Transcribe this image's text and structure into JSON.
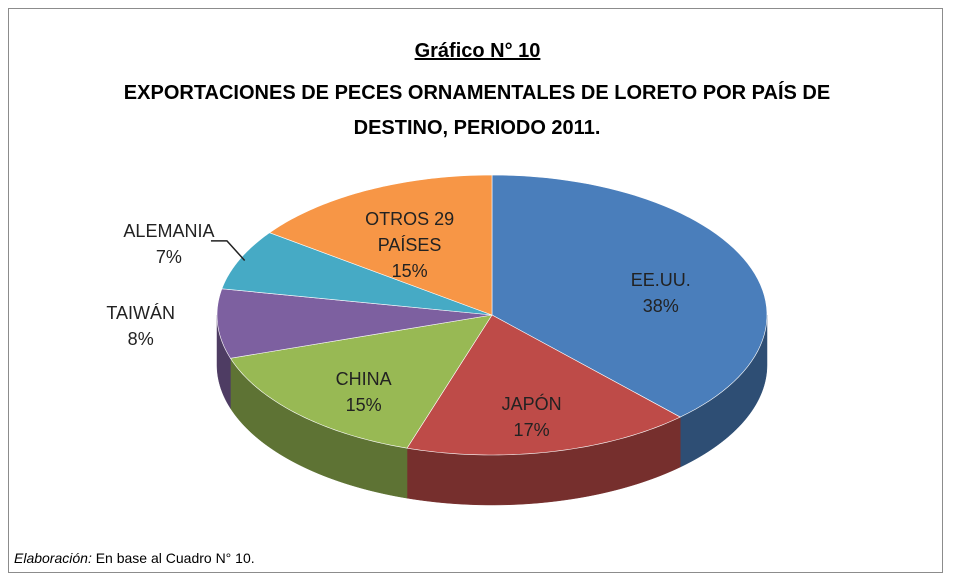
{
  "chart_data": {
    "type": "pie",
    "title": "Gráfico N° 10",
    "subtitle": "EXPORTACIONES DE PECES ORNAMENTALES DE LORETO POR PAÍS DE DESTINO, PERIODO 2011.",
    "categories": [
      "EE.UU.",
      "JAPÓN",
      "CHINA",
      "TAIWÁN",
      "ALEMANIA",
      "OTROS 29 PAÍSES"
    ],
    "values": [
      38,
      17,
      15,
      8,
      7,
      15
    ],
    "value_labels": [
      "38%",
      "17%",
      "15%",
      "8%",
      "7%",
      "15%"
    ],
    "colors": [
      "#4a7ebb",
      "#be4b48",
      "#98b954",
      "#7d60a0",
      "#46aac5",
      "#f79646"
    ],
    "source_label": "Elaboración:",
    "source": "En base al Cuadro N° 10."
  }
}
